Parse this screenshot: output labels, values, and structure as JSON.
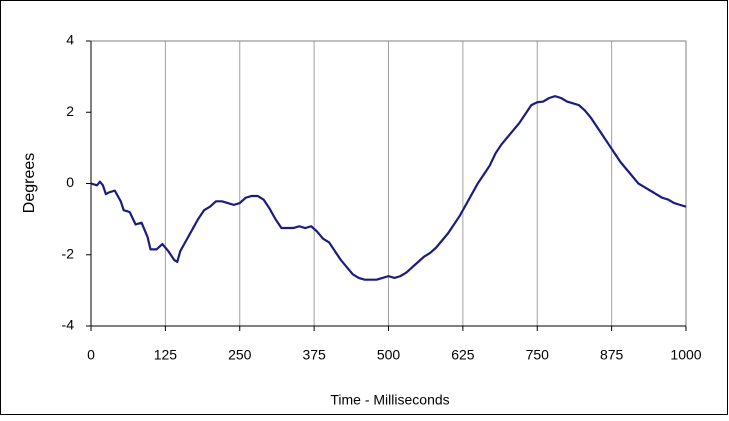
{
  "chart_data": {
    "type": "line",
    "x": [
      0,
      10,
      15,
      20,
      25,
      30,
      40,
      50,
      55,
      65,
      75,
      85,
      95,
      100,
      110,
      120,
      130,
      140,
      145,
      150,
      160,
      170,
      180,
      190,
      200,
      210,
      220,
      230,
      240,
      250,
      260,
      270,
      280,
      290,
      300,
      310,
      320,
      330,
      340,
      350,
      360,
      370,
      380,
      390,
      400,
      410,
      420,
      430,
      440,
      450,
      460,
      470,
      480,
      490,
      500,
      510,
      520,
      530,
      540,
      550,
      560,
      570,
      580,
      590,
      600,
      610,
      620,
      630,
      640,
      650,
      660,
      670,
      680,
      690,
      700,
      710,
      720,
      730,
      740,
      750,
      760,
      770,
      780,
      790,
      800,
      810,
      820,
      830,
      840,
      850,
      860,
      870,
      880,
      890,
      900,
      910,
      920,
      930,
      940,
      950,
      960,
      970,
      980,
      990,
      1000
    ],
    "series": [
      {
        "color": "#1c1c80",
        "values": [
          0,
          -0.05,
          0.05,
          -0.05,
          -0.3,
          -0.25,
          -0.2,
          -0.5,
          -0.75,
          -0.8,
          -1.15,
          -1.1,
          -1.5,
          -1.85,
          -1.85,
          -1.7,
          -1.9,
          -2.15,
          -2.2,
          -1.9,
          -1.6,
          -1.3,
          -1.0,
          -0.75,
          -0.65,
          -0.5,
          -0.5,
          -0.55,
          -0.6,
          -0.55,
          -0.4,
          -0.35,
          -0.35,
          -0.45,
          -0.7,
          -1.0,
          -1.25,
          -1.25,
          -1.25,
          -1.2,
          -1.25,
          -1.2,
          -1.35,
          -1.55,
          -1.65,
          -1.9,
          -2.15,
          -2.35,
          -2.55,
          -2.65,
          -2.7,
          -2.7,
          -2.7,
          -2.65,
          -2.6,
          -2.65,
          -2.6,
          -2.5,
          -2.35,
          -2.2,
          -2.05,
          -1.95,
          -1.8,
          -1.6,
          -1.4,
          -1.15,
          -0.9,
          -0.6,
          -0.3,
          0.0,
          0.25,
          0.5,
          0.85,
          1.1,
          1.3,
          1.5,
          1.7,
          1.95,
          2.2,
          2.28,
          2.3,
          2.4,
          2.45,
          2.4,
          2.3,
          2.25,
          2.2,
          2.05,
          1.85,
          1.6,
          1.35,
          1.1,
          0.85,
          0.6,
          0.4,
          0.2,
          0.0,
          -0.1,
          -0.2,
          -0.3,
          -0.4,
          -0.45,
          -0.55,
          -0.6,
          -0.65
        ]
      }
    ],
    "xlabel": "Time - Milliseconds",
    "ylabel": "Degrees",
    "xlim": [
      0,
      1000
    ],
    "xticks": [
      0,
      125,
      250,
      375,
      500,
      625,
      750,
      875,
      1000
    ],
    "ylim": [
      -4,
      4
    ],
    "yticks": [
      -4,
      -2,
      0,
      2,
      4
    ],
    "grid": "x"
  }
}
